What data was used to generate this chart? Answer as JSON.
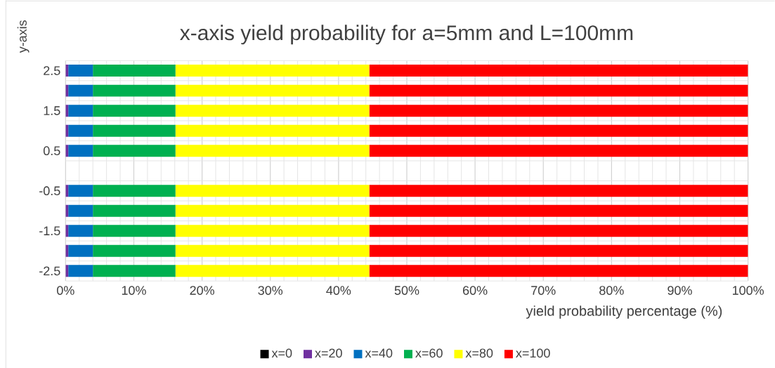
{
  "chart_data": {
    "type": "bar",
    "orientation": "horizontal",
    "stacked": true,
    "title": "x-axis yield probability for a=5mm and L=100mm",
    "xlabel": "yield probability percentage (%)",
    "ylabel": "y-axis",
    "categories": [
      "2.5",
      null,
      "1.5",
      null,
      "0.5",
      null,
      "-0.5",
      null,
      "-1.5",
      null,
      "-2.5"
    ],
    "series": [
      {
        "name": "x=0",
        "color": "#000000",
        "values": [
          0,
          0,
          0,
          0,
          0,
          null,
          0,
          0,
          0,
          0,
          0
        ]
      },
      {
        "name": "x=20",
        "color": "#7030a0",
        "values": [
          0.4,
          0.4,
          0.4,
          0.4,
          0.4,
          null,
          0.4,
          0.4,
          0.4,
          0.4,
          0.4
        ]
      },
      {
        "name": "x=40",
        "color": "#0070c0",
        "values": [
          3.6,
          3.6,
          3.6,
          3.6,
          3.6,
          null,
          3.6,
          3.6,
          3.6,
          3.6,
          3.6
        ]
      },
      {
        "name": "x=60",
        "color": "#00b050",
        "values": [
          12.1,
          12.1,
          12.1,
          12.1,
          12.1,
          null,
          12.1,
          12.1,
          12.1,
          12.1,
          12.1
        ]
      },
      {
        "name": "x=80",
        "color": "#ffff00",
        "values": [
          28.4,
          28.4,
          28.4,
          28.4,
          28.4,
          null,
          28.4,
          28.4,
          28.4,
          28.4,
          28.4
        ]
      },
      {
        "name": "x=100",
        "color": "#ff0000",
        "values": [
          55.5,
          55.5,
          55.5,
          55.5,
          55.5,
          null,
          55.5,
          55.5,
          55.5,
          55.5,
          55.5
        ]
      }
    ],
    "xlim": [
      0,
      100
    ],
    "xticks": [
      {
        "value": 0,
        "label": "0%"
      },
      {
        "value": 10,
        "label": "10%"
      },
      {
        "value": 20,
        "label": "20%"
      },
      {
        "value": 30,
        "label": "30%"
      },
      {
        "value": 40,
        "label": "40%"
      },
      {
        "value": 50,
        "label": "50%"
      },
      {
        "value": 60,
        "label": "60%"
      },
      {
        "value": 70,
        "label": "70%"
      },
      {
        "value": 80,
        "label": "80%"
      },
      {
        "value": 90,
        "label": "90%"
      },
      {
        "value": 100,
        "label": "100%"
      }
    ],
    "grid": true,
    "legend": "bottom"
  }
}
